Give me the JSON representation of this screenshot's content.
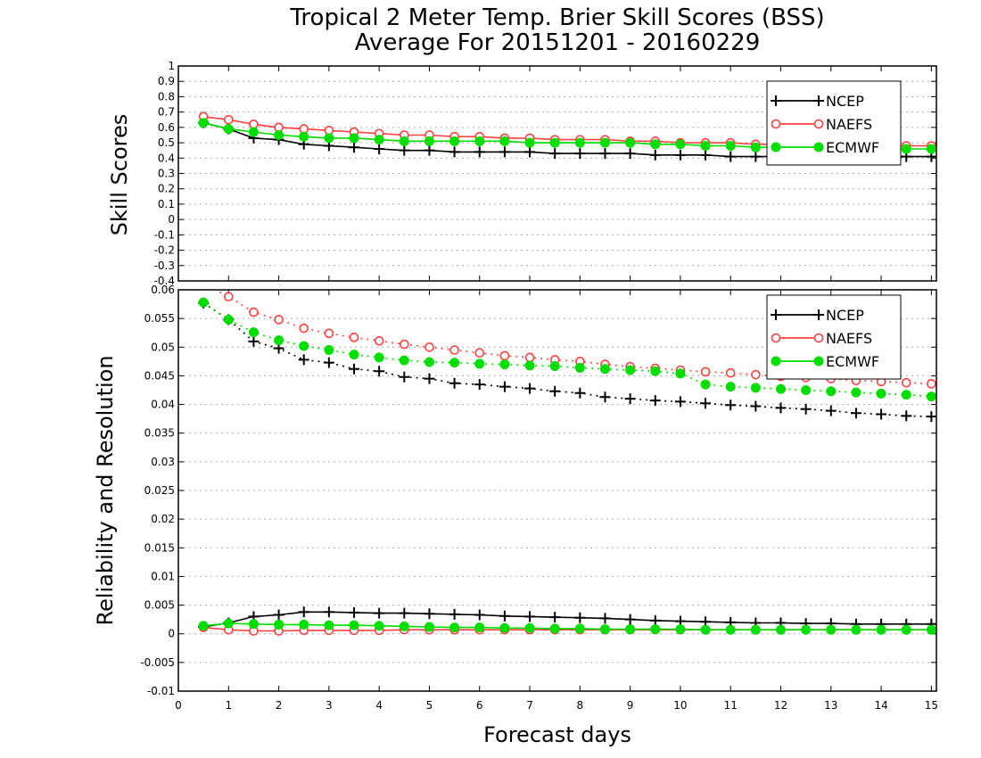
{
  "chart_data": [
    {
      "type": "line",
      "title": "Tropical 2 Meter Temp. Brier Skill Scores (BSS)",
      "subtitle": "Average For 20151201 - 20160229",
      "ylabel": "Skill Scores",
      "xlabel": "",
      "xlim": [
        0,
        15.1
      ],
      "ylim": [
        -0.4,
        1
      ],
      "yticks": [
        "-0.4",
        "-0.3",
        "-0.2",
        "-0.1",
        "0",
        "0.1",
        "0.2",
        "0.3",
        "0.4",
        "0.5",
        "0.6",
        "0.7",
        "0.8",
        "0.9",
        "1"
      ],
      "grid": true,
      "legend": "top-right",
      "x": [
        0.5,
        1,
        1.5,
        2,
        2.5,
        3,
        3.5,
        4,
        4.5,
        5,
        5.5,
        6,
        6.5,
        7,
        7.5,
        8,
        8.5,
        9,
        9.5,
        10,
        10.5,
        11,
        11.5,
        12,
        12.5,
        13,
        13.5,
        14,
        14.5,
        15
      ],
      "series": [
        {
          "name": "NCEP",
          "color": "#000000",
          "marker": "plus",
          "values": [
            0.63,
            0.59,
            0.53,
            0.52,
            0.49,
            0.48,
            0.47,
            0.46,
            0.45,
            0.45,
            0.44,
            0.44,
            0.44,
            0.44,
            0.43,
            0.43,
            0.43,
            0.43,
            0.42,
            0.42,
            0.42,
            0.41,
            0.41,
            0.41,
            0.41,
            0.41,
            0.41,
            0.41,
            0.41,
            0.41
          ]
        },
        {
          "name": "NAEFS",
          "color": "#ff4040",
          "marker": "open-circle",
          "values": [
            0.67,
            0.65,
            0.62,
            0.6,
            0.59,
            0.58,
            0.57,
            0.56,
            0.55,
            0.55,
            0.54,
            0.54,
            0.53,
            0.53,
            0.52,
            0.52,
            0.52,
            0.51,
            0.51,
            0.5,
            0.5,
            0.5,
            0.49,
            0.49,
            0.49,
            0.49,
            0.48,
            0.48,
            0.48,
            0.48
          ]
        },
        {
          "name": "ECMWF",
          "color": "#00dd00",
          "marker": "filled-circle",
          "values": [
            0.63,
            0.59,
            0.57,
            0.55,
            0.54,
            0.53,
            0.53,
            0.52,
            0.51,
            0.51,
            0.51,
            0.51,
            0.51,
            0.5,
            0.5,
            0.5,
            0.5,
            0.5,
            0.49,
            0.49,
            0.48,
            0.48,
            0.47,
            0.47,
            0.47,
            0.47,
            0.46,
            0.46,
            0.46,
            0.46
          ]
        }
      ]
    },
    {
      "type": "line",
      "title": "",
      "ylabel": "Reliability and Resolution",
      "xlabel": "Forecast days",
      "xlim": [
        0,
        15.1
      ],
      "ylim": [
        -0.01,
        0.06
      ],
      "yticks": [
        "-0.01",
        "-0.005",
        "0",
        "0.005",
        "0.01",
        "0.015",
        "0.02",
        "0.025",
        "0.03",
        "0.035",
        "0.04",
        "0.045",
        "0.05",
        "0.055",
        "0.06"
      ],
      "xticks": [
        "0",
        "1",
        "2",
        "3",
        "4",
        "5",
        "6",
        "7",
        "8",
        "9",
        "10",
        "11",
        "12",
        "13",
        "14",
        "15"
      ],
      "grid": true,
      "legend": "top-right",
      "x": [
        0.5,
        1,
        1.5,
        2,
        2.5,
        3,
        3.5,
        4,
        4.5,
        5,
        5.5,
        6,
        6.5,
        7,
        7.5,
        8,
        8.5,
        9,
        9.5,
        10,
        10.5,
        11,
        11.5,
        12,
        12.5,
        13,
        13.5,
        14,
        14.5,
        15
      ],
      "series": [
        {
          "name": "NCEP",
          "role": "resolution",
          "style": "dotted",
          "color": "#000000",
          "marker": "plus",
          "values": [
            0.0577,
            0.0548,
            0.051,
            0.0498,
            0.0478,
            0.0473,
            0.0462,
            0.0458,
            0.0448,
            0.0445,
            0.0437,
            0.0435,
            0.0431,
            0.0428,
            0.0423,
            0.042,
            0.0413,
            0.041,
            0.0407,
            0.0405,
            0.0402,
            0.0399,
            0.0397,
            0.0394,
            0.0392,
            0.0389,
            0.0385,
            0.0383,
            0.038,
            0.0379
          ]
        },
        {
          "name": "NAEFS",
          "role": "resolution",
          "style": "dotted",
          "color": "#ff4040",
          "marker": "open-circle",
          "values": [
            0.0612,
            0.0588,
            0.0561,
            0.0548,
            0.0533,
            0.0524,
            0.0517,
            0.0511,
            0.0505,
            0.05,
            0.0495,
            0.049,
            0.0485,
            0.0482,
            0.0478,
            0.0475,
            0.047,
            0.0466,
            0.0463,
            0.046,
            0.0457,
            0.0455,
            0.0452,
            0.0449,
            0.0447,
            0.0445,
            0.0442,
            0.044,
            0.0438,
            0.0436
          ]
        },
        {
          "name": "ECMWF",
          "role": "resolution",
          "style": "dotted",
          "color": "#00dd00",
          "marker": "filled-circle",
          "values": [
            0.0578,
            0.0548,
            0.0526,
            0.0512,
            0.0502,
            0.0495,
            0.0487,
            0.0482,
            0.0477,
            0.0474,
            0.0473,
            0.0471,
            0.047,
            0.0468,
            0.0467,
            0.0464,
            0.0462,
            0.046,
            0.0458,
            0.0454,
            0.0435,
            0.0431,
            0.0429,
            0.0427,
            0.0425,
            0.0423,
            0.0421,
            0.0419,
            0.0417,
            0.0414
          ]
        },
        {
          "name": "NCEP",
          "role": "reliability",
          "style": "solid",
          "color": "#000000",
          "marker": "plus",
          "values": [
            0.0012,
            0.0019,
            0.003,
            0.0033,
            0.0038,
            0.0038,
            0.0037,
            0.0036,
            0.0036,
            0.0035,
            0.0034,
            0.0033,
            0.0031,
            0.003,
            0.0029,
            0.0028,
            0.0027,
            0.0025,
            0.0023,
            0.0022,
            0.0021,
            0.002,
            0.0019,
            0.0019,
            0.0018,
            0.0018,
            0.0017,
            0.0017,
            0.0017,
            0.0017
          ]
        },
        {
          "name": "NAEFS",
          "role": "reliability",
          "style": "solid",
          "color": "#ff4040",
          "marker": "open-circle",
          "values": [
            0.0011,
            0.0007,
            0.0005,
            0.0005,
            0.0006,
            0.0006,
            0.0006,
            0.0006,
            0.0007,
            0.0007,
            0.0007,
            0.0007,
            0.0007,
            0.0007,
            0.0007,
            0.0007,
            0.0007,
            0.0007,
            0.0007,
            0.0007,
            0.0007,
            0.0007,
            0.0007,
            0.0007,
            0.0007,
            0.0007,
            0.0007,
            0.0007,
            0.0007,
            0.0007
          ]
        },
        {
          "name": "ECMWF",
          "role": "reliability",
          "style": "solid",
          "color": "#00dd00",
          "marker": "filled-circle",
          "values": [
            0.0014,
            0.0018,
            0.0017,
            0.0016,
            0.0016,
            0.0015,
            0.0015,
            0.0014,
            0.0013,
            0.0012,
            0.0011,
            0.0011,
            0.001,
            0.001,
            0.0009,
            0.0009,
            0.0008,
            0.0008,
            0.0008,
            0.0008,
            0.0007,
            0.0007,
            0.0007,
            0.0007,
            0.0007,
            0.0007,
            0.0007,
            0.0007,
            0.0007,
            0.0007
          ]
        }
      ]
    }
  ],
  "legend": {
    "entries": [
      "NCEP",
      "NAEFS",
      "ECMWF"
    ]
  }
}
